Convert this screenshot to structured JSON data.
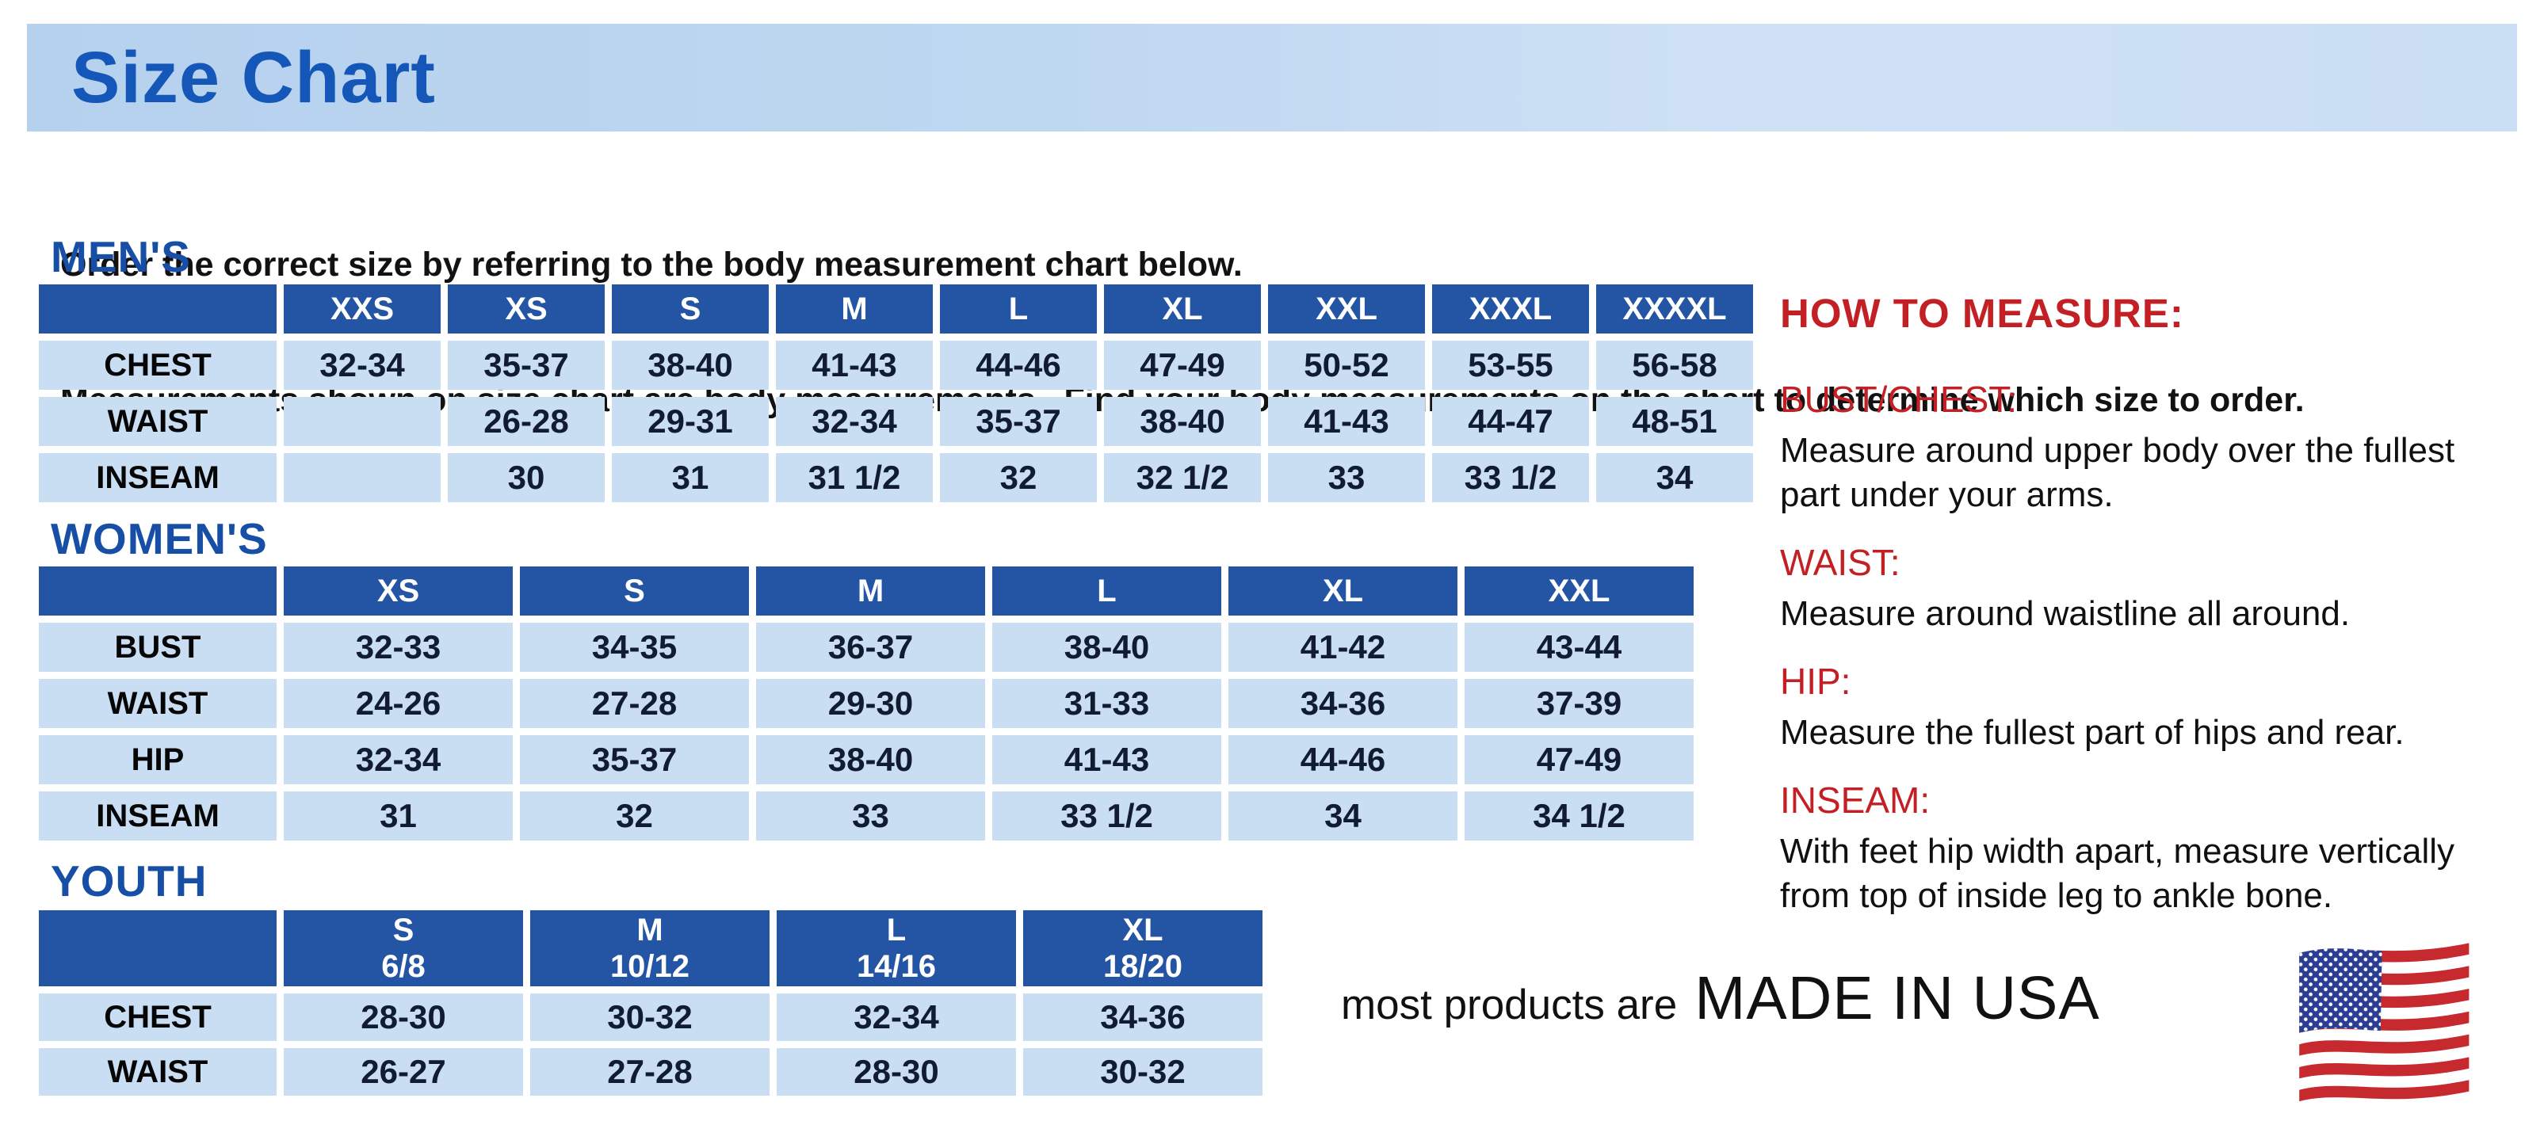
{
  "page": {
    "title": "Size Chart",
    "intro_line1": "Order the correct size by referring to the body measurement chart below.",
    "intro_line2": "Measurements shown on size chart are body measurements.  Find your body measurements on the chart to determine which size to order."
  },
  "colors": {
    "header_bar_bg": "#bed7f1",
    "title_blue": "#1457b8",
    "section_blue": "#164fa5",
    "table_header_bg": "#2355a4",
    "table_cell_bg": "#c9ddf3",
    "accent_red": "#c32026"
  },
  "tables": {
    "mens": {
      "title": "MEN'S",
      "columns": [
        "XXS",
        "XS",
        "S",
        "M",
        "L",
        "XL",
        "XXL",
        "XXXL",
        "XXXXL"
      ],
      "rows": [
        {
          "label": "CHEST",
          "values": [
            "32-34",
            "35-37",
            "38-40",
            "41-43",
            "44-46",
            "47-49",
            "50-52",
            "53-55",
            "56-58"
          ]
        },
        {
          "label": "WAIST",
          "values": [
            "",
            "26-28",
            "29-31",
            "32-34",
            "35-37",
            "38-40",
            "41-43",
            "44-47",
            "48-51"
          ]
        },
        {
          "label": "INSEAM",
          "values": [
            "",
            "30",
            "31",
            "31 1/2",
            "32",
            "32 1/2",
            "33",
            "33 1/2",
            "34"
          ]
        }
      ]
    },
    "womens": {
      "title": "WOMEN'S",
      "columns": [
        "XS",
        "S",
        "M",
        "L",
        "XL",
        "XXL"
      ],
      "rows": [
        {
          "label": "BUST",
          "values": [
            "32-33",
            "34-35",
            "36-37",
            "38-40",
            "41-42",
            "43-44"
          ]
        },
        {
          "label": "WAIST",
          "values": [
            "24-26",
            "27-28",
            "29-30",
            "31-33",
            "34-36",
            "37-39"
          ]
        },
        {
          "label": "HIP",
          "values": [
            "32-34",
            "35-37",
            "38-40",
            "41-43",
            "44-46",
            "47-49"
          ]
        },
        {
          "label": "INSEAM",
          "values": [
            "31",
            "32",
            "33",
            "33 1/2",
            "34",
            "34 1/2"
          ]
        }
      ]
    },
    "youth": {
      "title": "YOUTH",
      "columns": [
        "S\n6/8",
        "M\n10/12",
        "L\n14/16",
        "XL\n18/20"
      ],
      "rows": [
        {
          "label": "CHEST",
          "values": [
            "28-30",
            "30-32",
            "32-34",
            "34-36"
          ]
        },
        {
          "label": "WAIST",
          "values": [
            "26-27",
            "27-28",
            "28-30",
            "30-32"
          ]
        }
      ]
    }
  },
  "how_to_measure": {
    "title": "HOW TO MEASURE:",
    "sections": [
      {
        "heading": "BUST/CHEST:",
        "text": "Measure around upper body over the fullest part under your arms."
      },
      {
        "heading": "WAIST:",
        "text": "Measure around waistline all around."
      },
      {
        "heading": "HIP:",
        "text": "Measure the fullest part of hips and rear."
      },
      {
        "heading": "INSEAM:",
        "text": "With feet hip width apart, measure vertically from top of inside leg to ankle bone."
      }
    ]
  },
  "footer": {
    "prefix": "most products are",
    "emphasis": "MADE IN USA",
    "flag_icon": "us-flag-icon"
  }
}
